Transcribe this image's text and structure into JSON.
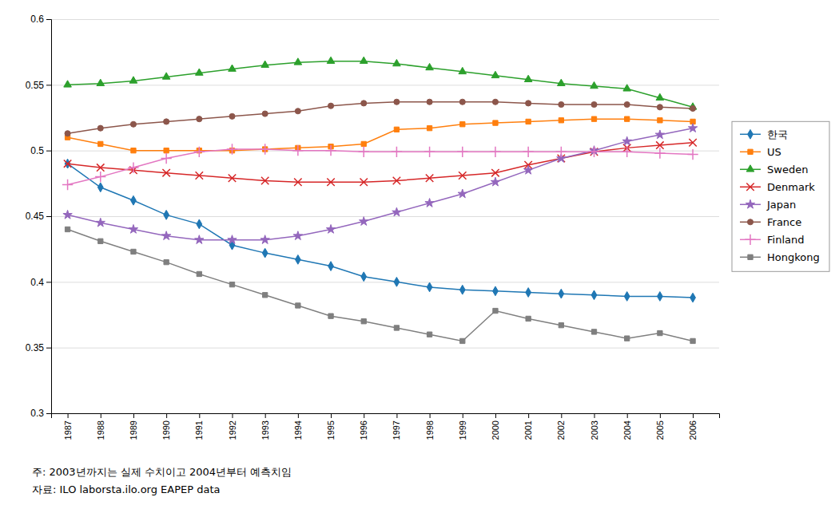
{
  "chart_data": {
    "type": "line",
    "x": [
      1987,
      1988,
      1989,
      1990,
      1991,
      1992,
      1993,
      1994,
      1995,
      1996,
      1997,
      1998,
      1999,
      2000,
      2001,
      2002,
      2003,
      2004,
      2005,
      2006
    ],
    "series": [
      {
        "name": "한국",
        "marker": "diamond",
        "values": [
          0.49,
          0.472,
          0.462,
          0.451,
          0.444,
          0.428,
          0.422,
          0.417,
          0.412,
          0.404,
          0.4,
          0.396,
          0.394,
          0.393,
          0.392,
          0.391,
          0.39,
          0.389,
          0.389,
          0.388
        ]
      },
      {
        "name": "US",
        "marker": "square",
        "values": [
          0.51,
          0.505,
          0.5,
          0.5,
          0.5,
          0.5,
          0.501,
          0.502,
          0.503,
          0.505,
          0.516,
          0.517,
          0.52,
          0.521,
          0.522,
          0.523,
          0.524,
          0.524,
          0.523,
          0.522
        ]
      },
      {
        "name": "Sweden",
        "marker": "triangle",
        "values": [
          0.55,
          0.551,
          0.553,
          0.556,
          0.559,
          0.562,
          0.565,
          0.567,
          0.568,
          0.568,
          0.566,
          0.563,
          0.56,
          0.557,
          0.554,
          0.551,
          0.549,
          0.547,
          0.54,
          0.533
        ]
      },
      {
        "name": "Denmark",
        "marker": "x",
        "values": [
          0.49,
          0.487,
          0.485,
          0.483,
          0.481,
          0.479,
          0.477,
          0.476,
          0.476,
          0.476,
          0.477,
          0.479,
          0.481,
          0.483,
          0.489,
          0.494,
          0.499,
          0.502,
          0.504,
          0.506
        ]
      },
      {
        "name": "Japan",
        "marker": "star",
        "values": [
          0.451,
          0.445,
          0.44,
          0.435,
          0.432,
          0.432,
          0.432,
          0.435,
          0.44,
          0.446,
          0.453,
          0.46,
          0.467,
          0.476,
          0.485,
          0.494,
          0.5,
          0.507,
          0.512,
          0.517
        ]
      },
      {
        "name": "France",
        "marker": "circle",
        "values": [
          0.513,
          0.517,
          0.52,
          0.522,
          0.524,
          0.526,
          0.528,
          0.53,
          0.534,
          0.536,
          0.537,
          0.537,
          0.537,
          0.537,
          0.536,
          0.535,
          0.535,
          0.535,
          0.533,
          0.532
        ]
      },
      {
        "name": "Finland",
        "marker": "plus",
        "values": [
          0.474,
          0.48,
          0.487,
          0.494,
          0.499,
          0.501,
          0.501,
          0.5,
          0.5,
          0.499,
          0.499,
          0.499,
          0.499,
          0.499,
          0.499,
          0.499,
          0.499,
          0.499,
          0.498,
          0.497
        ]
      },
      {
        "name": "Hongkong",
        "marker": "square",
        "values": [
          0.44,
          0.431,
          0.423,
          0.415,
          0.406,
          0.398,
          0.39,
          0.382,
          0.374,
          0.37,
          0.365,
          0.36,
          0.355,
          0.378,
          0.372,
          0.367,
          0.362,
          0.357,
          0.361,
          0.355
        ]
      }
    ],
    "xlim": [
      1986.5,
      2006.8
    ],
    "xticks": [
      1987,
      1988,
      1989,
      1990,
      1991,
      1992,
      1993,
      1994,
      1995,
      1996,
      1997,
      1998,
      1999,
      2000,
      2001,
      2002,
      2003,
      2004,
      2005,
      2006
    ],
    "ylim": [
      0.3,
      0.6
    ],
    "yticks": [
      0.3,
      0.35,
      0.4,
      0.45,
      0.5,
      0.55,
      0.6
    ],
    "grid": true,
    "legend": "right",
    "annotations": [
      "주: 2003년까지는 실제 수치이고 2004년부터 예측치임",
      "자료: ILO laborsta.ilo.org EAPEP data"
    ]
  }
}
